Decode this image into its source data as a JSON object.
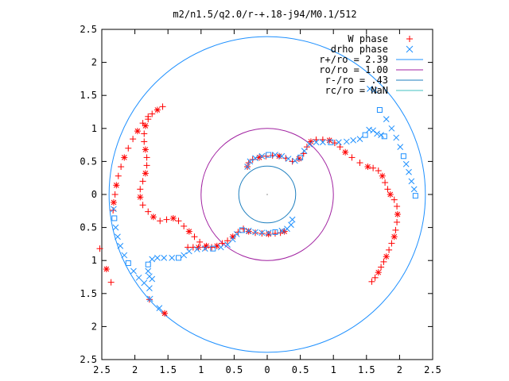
{
  "chart_data": {
    "type": "scatter",
    "title": "m2/n1.5/q2.0/r-+.18-j94/M0.1/512",
    "xlabel": "",
    "ylabel": "",
    "xlim": [
      -2.5,
      2.5
    ],
    "ylim": [
      -2.5,
      2.5
    ],
    "x_ticks": [
      -2.5,
      -2,
      -1.5,
      -1,
      -0.5,
      0,
      0.5,
      1,
      1.5,
      2,
      2.5
    ],
    "y_ticks": [
      -2.5,
      -2,
      -1.5,
      -1,
      -0.5,
      0,
      0.5,
      1,
      1.5,
      2,
      2.5
    ],
    "x_tick_labels": [
      "2.5",
      "2",
      "1.5",
      "1",
      "0.5",
      "0",
      "0.5",
      "1",
      "1.5",
      "2",
      "2.5"
    ],
    "y_tick_labels": [
      "2.5",
      "2",
      "1.5",
      "1",
      "0.5",
      "0",
      "0.5",
      "1",
      "1.5",
      "2",
      "2.5"
    ],
    "legend_position": "top-right",
    "grid": false,
    "series": [
      {
        "name": "W phase",
        "marker": "plus-star",
        "color": "#ff0000",
        "points": [
          [
            -0.3,
            0.42
          ],
          [
            -0.28,
            0.48
          ],
          [
            -0.22,
            0.53
          ],
          [
            -0.12,
            0.56
          ],
          [
            -0.02,
            0.58
          ],
          [
            0.08,
            0.59
          ],
          [
            0.18,
            0.58
          ],
          [
            0.28,
            0.55
          ],
          [
            0.38,
            0.5
          ],
          [
            0.48,
            0.54
          ],
          [
            0.55,
            0.62
          ],
          [
            0.6,
            0.72
          ],
          [
            0.66,
            0.8
          ],
          [
            0.74,
            0.83
          ],
          [
            0.84,
            0.83
          ],
          [
            0.94,
            0.82
          ],
          [
            1.02,
            0.78
          ],
          [
            1.1,
            0.72
          ],
          [
            1.18,
            0.64
          ],
          [
            1.28,
            0.56
          ],
          [
            1.4,
            0.48
          ],
          [
            1.52,
            0.42
          ],
          [
            1.6,
            0.4
          ],
          [
            1.68,
            0.36
          ],
          [
            1.74,
            0.28
          ],
          [
            1.78,
            0.18
          ],
          [
            1.82,
            0.08
          ],
          [
            1.86,
            0.0
          ],
          [
            1.92,
            -0.08
          ],
          [
            1.96,
            -0.18
          ],
          [
            1.97,
            -0.3
          ],
          [
            1.96,
            -0.42
          ],
          [
            1.94,
            -0.54
          ],
          [
            1.92,
            -0.64
          ],
          [
            1.88,
            -0.74
          ],
          [
            1.84,
            -0.84
          ],
          [
            1.8,
            -0.94
          ],
          [
            1.76,
            -1.02
          ],
          [
            1.72,
            -1.1
          ],
          [
            1.68,
            -1.18
          ],
          [
            1.63,
            -1.26
          ],
          [
            1.58,
            -1.32
          ],
          [
            0.26,
            -0.56
          ],
          [
            0.2,
            -0.58
          ],
          [
            0.12,
            -0.59
          ],
          [
            0.02,
            -0.6
          ],
          [
            -0.08,
            -0.59
          ],
          [
            -0.18,
            -0.58
          ],
          [
            -0.28,
            -0.56
          ],
          [
            -0.36,
            -0.52
          ],
          [
            -0.44,
            -0.57
          ],
          [
            -0.52,
            -0.64
          ],
          [
            -0.6,
            -0.7
          ],
          [
            -0.68,
            -0.74
          ],
          [
            -0.76,
            -0.78
          ],
          [
            -0.84,
            -0.8
          ],
          [
            -0.94,
            -0.8
          ],
          [
            -1.04,
            -0.8
          ],
          [
            -1.12,
            -0.8
          ],
          [
            -1.2,
            -0.8
          ],
          [
            -0.92,
            -0.78
          ],
          [
            -1.02,
            -0.72
          ],
          [
            -1.1,
            -0.64
          ],
          [
            -1.18,
            -0.56
          ],
          [
            -1.26,
            -0.48
          ],
          [
            -1.34,
            -0.4
          ],
          [
            -1.42,
            -0.36
          ],
          [
            -1.52,
            -0.38
          ],
          [
            -1.62,
            -0.4
          ],
          [
            -1.72,
            -0.34
          ],
          [
            -1.8,
            -0.26
          ],
          [
            -1.88,
            -0.16
          ],
          [
            -1.92,
            -0.04
          ],
          [
            -1.92,
            0.08
          ],
          [
            -1.88,
            0.2
          ],
          [
            -1.84,
            0.32
          ],
          [
            -1.82,
            0.44
          ],
          [
            -1.82,
            0.56
          ],
          [
            -1.84,
            0.68
          ],
          [
            -1.86,
            0.8
          ],
          [
            -1.86,
            0.92
          ],
          [
            -1.84,
            1.04
          ],
          [
            -1.8,
            1.14
          ],
          [
            -1.74,
            1.22
          ],
          [
            -1.66,
            1.28
          ],
          [
            -1.58,
            1.33
          ],
          [
            -2.3,
            0.0
          ],
          [
            -2.28,
            0.14
          ],
          [
            -2.25,
            0.28
          ],
          [
            -2.21,
            0.42
          ],
          [
            -2.16,
            0.56
          ],
          [
            -2.1,
            0.7
          ],
          [
            -2.03,
            0.84
          ],
          [
            -1.96,
            0.96
          ],
          [
            -1.88,
            1.08
          ],
          [
            -1.8,
            1.18
          ],
          [
            -2.32,
            -0.12
          ],
          [
            -2.33,
            -0.24
          ],
          [
            -2.53,
            -0.82
          ],
          [
            -2.43,
            -1.13
          ],
          [
            -2.36,
            -1.33
          ],
          [
            -1.78,
            -1.59
          ],
          [
            -1.55,
            -1.8
          ]
        ]
      },
      {
        "name": "drho phase",
        "marker": "x-square",
        "color": "#1e90ff",
        "points": [
          [
            -0.3,
            0.42
          ],
          [
            -0.26,
            0.5
          ],
          [
            -0.18,
            0.55
          ],
          [
            -0.08,
            0.58
          ],
          [
            0.02,
            0.6
          ],
          [
            0.12,
            0.6
          ],
          [
            0.22,
            0.58
          ],
          [
            0.32,
            0.54
          ],
          [
            0.42,
            0.51
          ],
          [
            0.5,
            0.56
          ],
          [
            0.56,
            0.66
          ],
          [
            0.64,
            0.76
          ],
          [
            0.74,
            0.79
          ],
          [
            0.84,
            0.79
          ],
          [
            0.96,
            0.79
          ],
          [
            1.08,
            0.79
          ],
          [
            1.2,
            0.8
          ],
          [
            1.3,
            0.82
          ],
          [
            1.4,
            0.84
          ],
          [
            1.48,
            0.9
          ],
          [
            1.54,
            0.98
          ],
          [
            1.6,
            0.97
          ],
          [
            1.66,
            0.92
          ],
          [
            1.72,
            0.9
          ],
          [
            1.77,
            0.88
          ],
          [
            0.38,
            -0.38
          ],
          [
            0.36,
            -0.46
          ],
          [
            0.3,
            -0.52
          ],
          [
            0.22,
            -0.55
          ],
          [
            0.12,
            -0.57
          ],
          [
            0.02,
            -0.58
          ],
          [
            -0.08,
            -0.58
          ],
          [
            -0.18,
            -0.57
          ],
          [
            -0.28,
            -0.55
          ],
          [
            -0.38,
            -0.54
          ],
          [
            -0.46,
            -0.6
          ],
          [
            -0.52,
            -0.68
          ],
          [
            -0.6,
            -0.76
          ],
          [
            -0.7,
            -0.8
          ],
          [
            -0.82,
            -0.82
          ],
          [
            -0.94,
            -0.82
          ],
          [
            -1.06,
            -0.83
          ],
          [
            -1.18,
            -0.86
          ],
          [
            -1.26,
            -0.92
          ],
          [
            -1.34,
            -0.96
          ],
          [
            -1.44,
            -0.96
          ],
          [
            -1.56,
            -0.96
          ],
          [
            -1.66,
            -0.96
          ],
          [
            -1.74,
            -0.98
          ],
          [
            -1.8,
            -1.06
          ],
          [
            -1.8,
            -1.16
          ],
          [
            -1.78,
            -1.24
          ],
          [
            -1.74,
            -1.28
          ],
          [
            -2.32,
            -0.22
          ],
          [
            -2.31,
            -0.36
          ],
          [
            -2.29,
            -0.5
          ],
          [
            -2.26,
            -0.64
          ],
          [
            -2.22,
            -0.78
          ],
          [
            -2.16,
            -0.92
          ],
          [
            -2.1,
            -1.04
          ],
          [
            -2.02,
            -1.16
          ],
          [
            -1.94,
            -1.26
          ],
          [
            -1.86,
            -1.34
          ],
          [
            -1.78,
            -1.42
          ],
          [
            1.7,
            1.28
          ],
          [
            1.8,
            1.14
          ],
          [
            1.88,
            1.0
          ],
          [
            1.95,
            0.86
          ],
          [
            2.01,
            0.72
          ],
          [
            2.06,
            0.58
          ],
          [
            2.1,
            0.46
          ],
          [
            2.14,
            0.34
          ],
          [
            2.18,
            0.2
          ],
          [
            2.22,
            0.08
          ],
          [
            2.24,
            -0.02
          ],
          [
            1.62,
            1.58
          ],
          [
            1.55,
            1.6
          ],
          [
            -1.77,
            -1.58
          ],
          [
            -1.63,
            -1.72
          ]
        ]
      }
    ],
    "circles": [
      {
        "name": "r+/ro = 2.39",
        "radius": 2.39,
        "color": "#1e90ff"
      },
      {
        "name": "ro/ro = 1.00",
        "radius": 1.0,
        "color": "#a020a0"
      },
      {
        "name": "r-/ro = .43",
        "radius": 0.43,
        "color": "#1e7fbf"
      },
      {
        "name": "rc/ro = NaN",
        "radius": null,
        "color": "#40c0c0"
      }
    ]
  }
}
